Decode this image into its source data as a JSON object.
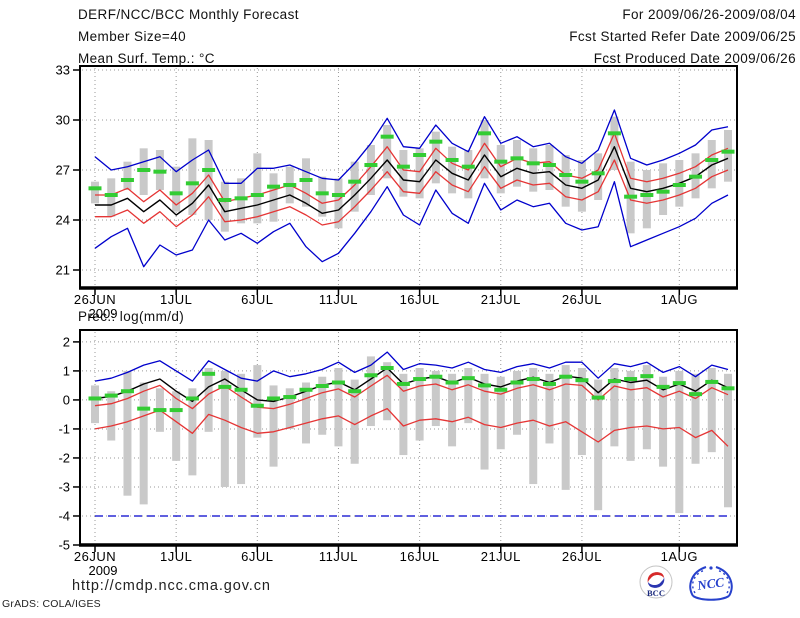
{
  "header": {
    "title": "DERF/NCC/BCC Monthly Forecast",
    "member_size": "Member Size=40",
    "for_range": "For 2009/06/26-2009/08/04",
    "refer_date": "Fcst Started Refer Date 2009/06/25",
    "produced_date": "Fcst Produced Date 2009/06/26"
  },
  "footer": {
    "url": "http://cmdp.ncc.cma.gov.cn",
    "credit": "GrADS: COLA/IGES",
    "bcc_label": "BCC",
    "ncc_label": "NCC"
  },
  "colors": {
    "blue": "#0000cc",
    "red": "#e53535",
    "green": "#33cc33",
    "black": "#000000",
    "bar_gray": "#c9c9c9",
    "grid_gray": "#999999",
    "logo_navy": "#1b2a7d",
    "logo_blue": "#2741cc",
    "logo_red": "#d62a2a"
  },
  "chart_data": [
    {
      "type": "line",
      "svg_name": "temp-chart",
      "title": "Mean Surf. Temp.: °C",
      "year_label": "2009",
      "n_days": 40,
      "x_tick_days": [
        0,
        5,
        10,
        15,
        20,
        25,
        30,
        36
      ],
      "x_tick_labels": [
        "26JUN",
        "1JUL",
        "6JUL",
        "11JUL",
        "16JUL",
        "21JUL",
        "26JUL",
        "1AUG"
      ],
      "ylim": [
        19.92,
        33.24
      ],
      "yticks": [
        21,
        24,
        27,
        30,
        33
      ],
      "bars": {
        "name": "member-spread-bar",
        "top": [
          26.3,
          26.5,
          27.5,
          28.3,
          28.2,
          27.2,
          28.9,
          28.8,
          26.3,
          26.5,
          28.0,
          26.8,
          27.2,
          27.7,
          26.6,
          26.5,
          27.5,
          28.5,
          29.7,
          28.2,
          28.3,
          29.3,
          28.4,
          28.2,
          30.0,
          28.5,
          28.8,
          28.3,
          28.5,
          27.9,
          27.6,
          28.0,
          30.2,
          27.5,
          27.0,
          27.4,
          27.6,
          28.0,
          28.8,
          29.4
        ],
        "bottom": [
          25.0,
          24.2,
          25.8,
          25.5,
          25.8,
          24.5,
          24.3,
          24.0,
          23.3,
          23.8,
          23.8,
          23.9,
          25.0,
          24.8,
          24.2,
          23.5,
          24.5,
          25.5,
          26.5,
          25.4,
          25.3,
          26.2,
          25.6,
          25.3,
          26.5,
          25.6,
          26.0,
          25.7,
          25.8,
          24.8,
          24.5,
          25.2,
          27.0,
          23.2,
          23.5,
          24.3,
          24.8,
          25.3,
          25.9,
          26.3
        ]
      },
      "series": [
        {
          "name": "ensemble-max",
          "color": "blue",
          "dash": "",
          "values": [
            27.8,
            27.0,
            27.2,
            27.5,
            27.8,
            26.9,
            27.6,
            28.2,
            26.2,
            26.2,
            27.1,
            27.1,
            27.3,
            26.9,
            26.5,
            26.4,
            27.4,
            28.6,
            30.1,
            28.4,
            28.3,
            29.7,
            28.6,
            28.1,
            30.2,
            28.6,
            29.0,
            28.4,
            28.6,
            27.8,
            27.4,
            28.2,
            30.6,
            27.7,
            27.3,
            27.6,
            28.0,
            28.5,
            29.4,
            29.6
          ]
        },
        {
          "name": "ensemble-plus-spread",
          "color": "red",
          "dash": "",
          "values": [
            25.5,
            25.5,
            25.9,
            25.1,
            25.8,
            24.9,
            25.6,
            26.7,
            25.1,
            25.3,
            25.5,
            25.8,
            26.1,
            25.6,
            25.0,
            25.2,
            26.1,
            27.2,
            28.4,
            27.0,
            26.9,
            28.3,
            27.4,
            27.0,
            28.6,
            27.2,
            27.7,
            27.4,
            27.5,
            26.7,
            26.5,
            27.0,
            29.2,
            26.5,
            26.3,
            26.5,
            26.8,
            27.2,
            27.9,
            28.3
          ]
        },
        {
          "name": "ensemble-mean",
          "color": "black",
          "dash": "",
          "values": [
            24.9,
            24.9,
            25.3,
            24.5,
            25.2,
            24.3,
            25.0,
            26.1,
            24.5,
            24.7,
            24.9,
            25.2,
            25.5,
            25.0,
            24.4,
            24.6,
            25.5,
            26.5,
            27.6,
            26.4,
            26.3,
            27.6,
            26.8,
            26.4,
            27.9,
            26.6,
            27.1,
            26.8,
            26.9,
            26.1,
            25.9,
            26.4,
            28.4,
            25.9,
            25.7,
            25.9,
            26.2,
            26.6,
            27.3,
            27.7
          ]
        },
        {
          "name": "ensemble-minus-spread",
          "color": "red",
          "dash": "",
          "values": [
            24.2,
            24.2,
            24.6,
            23.8,
            24.5,
            23.6,
            24.3,
            25.4,
            23.9,
            24.0,
            24.2,
            24.5,
            24.8,
            24.3,
            23.7,
            23.9,
            24.8,
            25.8,
            26.9,
            25.7,
            25.6,
            26.9,
            26.1,
            25.7,
            27.2,
            25.9,
            26.4,
            26.1,
            26.2,
            25.4,
            25.2,
            25.7,
            27.6,
            25.2,
            25.0,
            25.2,
            25.5,
            25.9,
            26.6,
            27.0
          ]
        },
        {
          "name": "ensemble-min",
          "color": "blue",
          "dash": "",
          "values": [
            22.3,
            23.0,
            23.5,
            21.2,
            22.5,
            21.9,
            22.2,
            24.0,
            22.8,
            23.2,
            22.6,
            23.3,
            23.8,
            22.4,
            21.5,
            22.0,
            23.2,
            24.5,
            26.0,
            24.3,
            23.7,
            25.8,
            24.4,
            23.8,
            26.2,
            24.6,
            25.2,
            24.8,
            25.0,
            23.8,
            23.4,
            23.6,
            26.3,
            22.4,
            22.8,
            23.2,
            23.6,
            24.1,
            25.0,
            25.5
          ]
        }
      ],
      "markers": {
        "name": "climatology-dash",
        "color": "green",
        "values": [
          25.9,
          25.5,
          26.4,
          27.0,
          26.9,
          25.6,
          26.2,
          27.0,
          25.2,
          25.3,
          25.5,
          26.0,
          26.1,
          26.4,
          25.6,
          25.5,
          26.3,
          27.3,
          29.0,
          27.2,
          27.9,
          28.7,
          27.6,
          27.2,
          29.2,
          27.5,
          27.7,
          27.4,
          27.3,
          26.7,
          26.3,
          26.8,
          29.2,
          25.4,
          25.5,
          25.7,
          26.1,
          26.6,
          27.6,
          28.1
        ]
      }
    },
    {
      "type": "line",
      "svg_name": "prec-chart",
      "title": "Prec.: log(mm/d)",
      "year_label": "2009",
      "n_days": 40,
      "x_tick_days": [
        0,
        5,
        10,
        15,
        20,
        25,
        30,
        36
      ],
      "x_tick_labels": [
        "26JUN",
        "1JUL",
        "6JUL",
        "11JUL",
        "16JUL",
        "21JUL",
        "26JUL",
        "1AUG"
      ],
      "ylim": [
        -5,
        2.41
      ],
      "yticks": [
        2,
        1,
        0,
        -1,
        -2,
        -3,
        -4,
        -5
      ],
      "bars": {
        "name": "member-spread-bar",
        "top": [
          0.5,
          0.3,
          1.0,
          0.6,
          0.4,
          0.3,
          0.4,
          1.1,
          1.0,
          0.9,
          1.2,
          0.5,
          0.4,
          0.6,
          0.8,
          1.1,
          0.7,
          1.5,
          1.3,
          0.9,
          1.1,
          1.0,
          0.9,
          1.1,
          0.9,
          0.8,
          1.0,
          1.1,
          0.9,
          1.2,
          1.1,
          0.7,
          1.1,
          1.0,
          1.2,
          0.8,
          1.0,
          0.9,
          1.1,
          0.9
        ],
        "bottom": [
          -0.8,
          -1.4,
          -3.3,
          -3.6,
          -1.1,
          -2.1,
          -2.6,
          -1.1,
          -3.0,
          -2.9,
          -1.3,
          -2.3,
          -1.0,
          -1.5,
          -1.2,
          -1.6,
          -2.2,
          -0.9,
          -0.7,
          -1.9,
          -1.4,
          -0.9,
          -1.6,
          -0.8,
          -2.4,
          -1.7,
          -1.2,
          -2.9,
          -1.5,
          -3.1,
          -1.9,
          -3.8,
          -1.6,
          -2.1,
          -1.7,
          -2.3,
          -3.9,
          -2.2,
          -1.8,
          -3.7
        ]
      },
      "series": [
        {
          "name": "ensemble-max",
          "color": "blue",
          "dash": "",
          "values": [
            0.65,
            0.75,
            0.95,
            1.2,
            1.35,
            1.0,
            0.65,
            1.35,
            1.05,
            0.75,
            0.65,
            1.0,
            0.8,
            0.9,
            1.05,
            1.3,
            0.95,
            1.2,
            1.65,
            1.05,
            1.25,
            1.2,
            1.1,
            1.3,
            1.05,
            0.95,
            1.15,
            1.25,
            1.1,
            1.3,
            1.3,
            0.75,
            1.25,
            1.15,
            1.3,
            0.95,
            1.15,
            0.8,
            1.2,
            1.05
          ]
        },
        {
          "name": "ensemble-mean",
          "color": "black",
          "dash": "",
          "values": [
            0.05,
            0.12,
            0.3,
            0.55,
            0.72,
            0.3,
            -0.05,
            0.45,
            0.72,
            0.35,
            0.0,
            -0.05,
            0.1,
            0.3,
            0.5,
            0.62,
            0.35,
            0.72,
            1.1,
            0.55,
            0.72,
            0.8,
            0.6,
            0.78,
            0.55,
            0.45,
            0.65,
            0.78,
            0.6,
            0.82,
            0.75,
            0.25,
            0.72,
            0.6,
            0.68,
            0.35,
            0.55,
            0.3,
            0.68,
            0.42
          ]
        },
        {
          "name": "ensemble-plus-spread",
          "color": "red",
          "dash": "",
          "values": [
            -0.2,
            -0.13,
            0.05,
            0.3,
            0.5,
            0.05,
            -0.3,
            0.2,
            0.48,
            0.1,
            -0.25,
            -0.3,
            -0.15,
            0.05,
            0.25,
            0.38,
            0.1,
            0.48,
            0.85,
            0.3,
            0.48,
            0.55,
            0.35,
            0.52,
            0.3,
            0.2,
            0.4,
            0.52,
            0.35,
            0.55,
            0.5,
            0.0,
            0.48,
            0.35,
            0.42,
            0.1,
            0.3,
            0.05,
            0.42,
            0.18
          ]
        },
        {
          "name": "ensemble-minus-spread",
          "color": "red",
          "dash": "",
          "values": [
            -1.0,
            -0.9,
            -0.75,
            -0.55,
            -0.35,
            -0.75,
            -1.15,
            -0.5,
            -0.7,
            -0.95,
            -1.15,
            -1.1,
            -0.95,
            -0.8,
            -0.65,
            -0.55,
            -0.85,
            -0.55,
            -0.3,
            -0.9,
            -0.7,
            -0.65,
            -0.75,
            -0.6,
            -0.85,
            -0.95,
            -0.8,
            -0.7,
            -0.9,
            -0.75,
            -1.1,
            -1.45,
            -1.05,
            -0.95,
            -0.9,
            -1.0,
            -0.95,
            -1.3,
            -1.05,
            -1.6
          ]
        },
        {
          "name": "ensemble-min",
          "color": "blue",
          "dash": "8 5",
          "values": [
            -4,
            -4,
            -4,
            -4,
            -4,
            -4,
            -4,
            -4,
            -4,
            -4,
            -4,
            -4,
            -4,
            -4,
            -4,
            -4,
            -4,
            -4,
            -4,
            -4,
            -4,
            -4,
            -4,
            -4,
            -4,
            -4,
            -4,
            -4,
            -4,
            -4,
            -4,
            -4,
            -4,
            -4,
            -4,
            -4,
            -4,
            -4,
            -4,
            -4
          ]
        }
      ],
      "markers": {
        "name": "climatology-dash",
        "color": "green",
        "values": [
          0.05,
          0.15,
          0.3,
          -0.3,
          -0.35,
          -0.35,
          0.05,
          0.9,
          0.45,
          0.35,
          -0.2,
          0.05,
          0.1,
          0.35,
          0.48,
          0.6,
          0.3,
          0.85,
          1.1,
          0.55,
          0.72,
          0.8,
          0.6,
          0.75,
          0.5,
          0.35,
          0.6,
          0.72,
          0.55,
          0.8,
          0.68,
          0.08,
          0.65,
          0.72,
          0.82,
          0.45,
          0.58,
          0.2,
          0.62,
          0.4
        ]
      }
    }
  ]
}
